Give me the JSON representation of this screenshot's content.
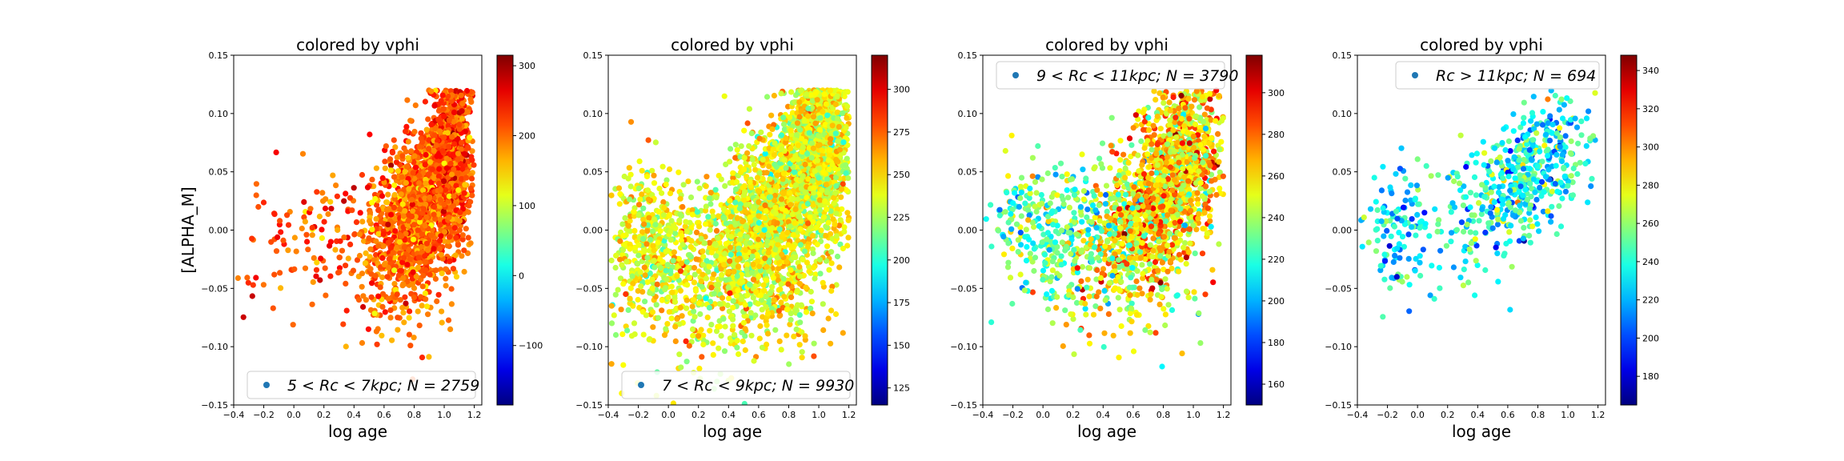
{
  "chart_data": [
    {
      "type": "scatter",
      "title": "colored by vphi",
      "xlabel": "log age",
      "ylabel": "[ALPHA_M]",
      "xlim": [
        -0.4,
        1.25
      ],
      "ylim": [
        -0.15,
        0.15
      ],
      "xticks": [
        "−0.4",
        "−0.2",
        "0.0",
        "0.2",
        "0.4",
        "0.6",
        "0.8",
        "1.0",
        "1.2"
      ],
      "yticks": [
        "−0.15",
        "−0.10",
        "−0.05",
        "0.00",
        "0.05",
        "0.10",
        "0.15"
      ],
      "legend": {
        "text": "5 < Rc < 7kpc;  N = 2759",
        "position": "lower-right"
      },
      "colorbar": {
        "min": -185,
        "max": 315,
        "ticks": [
          -100,
          0,
          100,
          200,
          300
        ],
        "colormap": "jet"
      },
      "points_summary": "dense cloud rising from x≈0.5,y≈-0.02 to x≈1.15,y≈0.11; sparse points at low age",
      "series": [
        {
          "cloud": [
            {
              "cx": 0.85,
              "cy": 0.02,
              "sx": 0.17,
              "sy": 0.035,
              "slope": 0.11,
              "n": 1600,
              "cmean": 200,
              "csd": 28
            },
            {
              "cx": 1.05,
              "cy": 0.07,
              "sx": 0.07,
              "sy": 0.035,
              "slope": 0.0,
              "n": 500,
              "cmean": 215,
              "csd": 30
            },
            {
              "cx": 0.15,
              "cy": -0.01,
              "sx": 0.3,
              "sy": 0.03,
              "slope": 0.05,
              "n": 140,
              "cmean": 215,
              "csd": 35
            },
            {
              "cx": 0.85,
              "cy": -0.065,
              "sx": 0.15,
              "sy": 0.018,
              "slope": 0.0,
              "n": 40,
              "cmean": 200,
              "csd": 25
            }
          ]
        }
      ]
    },
    {
      "type": "scatter",
      "title": "colored by vphi",
      "xlabel": "log age",
      "ylabel": "",
      "xlim": [
        -0.4,
        1.25
      ],
      "ylim": [
        -0.15,
        0.15
      ],
      "xticks": [
        "−0.4",
        "−0.2",
        "0.0",
        "0.2",
        "0.4",
        "0.6",
        "0.8",
        "1.0",
        "1.2"
      ],
      "yticks": [
        "−0.15",
        "−0.10",
        "−0.05",
        "0.00",
        "0.05",
        "0.10",
        "0.15"
      ],
      "legend": {
        "text": "7 < Rc < 9kpc;  N = 9930",
        "position": "lower-right"
      },
      "colorbar": {
        "min": 115,
        "max": 320,
        "ticks": [
          125,
          150,
          175,
          200,
          225,
          250,
          275,
          300
        ],
        "colormap": "jet"
      },
      "series": [
        {
          "cloud": [
            {
              "cx": 0.7,
              "cy": 0.01,
              "sx": 0.28,
              "sy": 0.04,
              "slope": 0.09,
              "n": 2200,
              "cmean": 240,
              "csd": 15
            },
            {
              "cx": 1.0,
              "cy": 0.08,
              "sx": 0.1,
              "sy": 0.03,
              "slope": 0.0,
              "n": 900,
              "cmean": 238,
              "csd": 15
            },
            {
              "cx": -0.1,
              "cy": -0.02,
              "sx": 0.15,
              "sy": 0.035,
              "slope": 0.0,
              "n": 500,
              "cmean": 240,
              "csd": 15
            },
            {
              "cx": 0.8,
              "cy": -0.07,
              "sx": 0.2,
              "sy": 0.02,
              "slope": 0.0,
              "n": 80,
              "cmean": 240,
              "csd": 15
            }
          ]
        }
      ]
    },
    {
      "type": "scatter",
      "title": "colored by vphi",
      "xlabel": "log age",
      "ylabel": "",
      "xlim": [
        -0.4,
        1.25
      ],
      "ylim": [
        -0.15,
        0.15
      ],
      "xticks": [
        "−0.4",
        "−0.2",
        "0.0",
        "0.2",
        "0.4",
        "0.6",
        "0.8",
        "1.0",
        "1.2"
      ],
      "yticks": [
        "−0.15",
        "−0.10",
        "−0.05",
        "0.00",
        "0.05",
        "0.10",
        "0.15"
      ],
      "legend": {
        "text": "9 < Rc < 11kpc;  N = 3790",
        "position": "upper-right"
      },
      "colorbar": {
        "min": 150,
        "max": 318,
        "ticks": [
          160,
          180,
          200,
          220,
          240,
          260,
          280,
          300
        ],
        "colormap": "jet"
      },
      "series": [
        {
          "cloud": [
            {
              "cx": 0.75,
              "cy": 0.02,
              "sx": 0.22,
              "sy": 0.035,
              "slope": 0.09,
              "n": 1300,
              "cmean": 258,
              "csd": 20
            },
            {
              "cx": 0.95,
              "cy": 0.075,
              "sx": 0.12,
              "sy": 0.025,
              "slope": 0.0,
              "n": 350,
              "cmean": 262,
              "csd": 20
            },
            {
              "cx": 0.05,
              "cy": 0.0,
              "sx": 0.22,
              "sy": 0.03,
              "slope": 0.0,
              "n": 350,
              "cmean": 232,
              "csd": 18
            },
            {
              "cx": 0.6,
              "cy": -0.055,
              "sx": 0.25,
              "sy": 0.02,
              "slope": 0.0,
              "n": 60,
              "cmean": 245,
              "csd": 20
            }
          ]
        }
      ]
    },
    {
      "type": "scatter",
      "title": "colored by vphi",
      "xlabel": "log age",
      "ylabel": "",
      "xlim": [
        -0.4,
        1.25
      ],
      "ylim": [
        -0.15,
        0.15
      ],
      "xticks": [
        "−0.4",
        "−0.2",
        "0.0",
        "0.2",
        "0.4",
        "0.6",
        "0.8",
        "1.0",
        "1.2"
      ],
      "yticks": [
        "−0.15",
        "−0.10",
        "−0.05",
        "0.00",
        "0.05",
        "0.10",
        "0.15"
      ],
      "legend": {
        "text": "Rc > 11kpc;  N = 694",
        "position": "upper-right"
      },
      "colorbar": {
        "min": 165,
        "max": 348,
        "ticks": [
          180,
          200,
          220,
          240,
          260,
          280,
          300,
          320,
          340
        ],
        "colormap": "jet"
      },
      "series": [
        {
          "cloud": [
            {
              "cx": 0.75,
              "cy": 0.045,
              "sx": 0.2,
              "sy": 0.028,
              "slope": 0.07,
              "n": 430,
              "cmean": 235,
              "csd": 22
            },
            {
              "cx": -0.1,
              "cy": 0.0,
              "sx": 0.14,
              "sy": 0.028,
              "slope": 0.0,
              "n": 130,
              "cmean": 230,
              "csd": 20
            },
            {
              "cx": 0.35,
              "cy": 0.01,
              "sx": 0.12,
              "sy": 0.03,
              "slope": 0.0,
              "n": 80,
              "cmean": 240,
              "csd": 20
            }
          ]
        }
      ]
    }
  ],
  "legend_marker_color": "#1f77b4"
}
